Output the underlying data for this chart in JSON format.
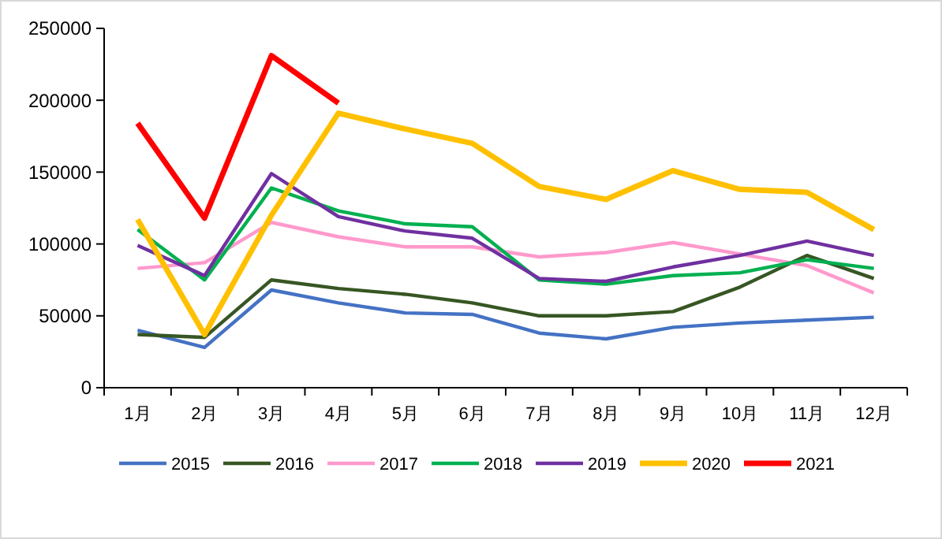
{
  "chart_data": {
    "type": "line",
    "categories": [
      "1月",
      "2月",
      "3月",
      "4月",
      "5月",
      "6月",
      "7月",
      "8月",
      "9月",
      "10月",
      "11月",
      "12月"
    ],
    "ylim": [
      0,
      250000
    ],
    "yticks": [
      0,
      50000,
      100000,
      150000,
      200000,
      250000
    ],
    "grid": false,
    "legend": "bottom",
    "marker": "none",
    "series": [
      {
        "name": "2015",
        "color": "#4472c4",
        "values": [
          40000,
          28000,
          68000,
          59000,
          52000,
          51000,
          38000,
          34000,
          42000,
          45000,
          47000,
          49000
        ]
      },
      {
        "name": "2016",
        "color": "#375623",
        "values": [
          37000,
          35000,
          75000,
          69000,
          65000,
          59000,
          50000,
          50000,
          53000,
          70000,
          92000,
          76000
        ]
      },
      {
        "name": "2017",
        "color": "#ff99cc",
        "values": [
          83000,
          87000,
          115000,
          105000,
          98000,
          98000,
          91000,
          94000,
          101000,
          93000,
          85000,
          66000
        ]
      },
      {
        "name": "2018",
        "color": "#00b050",
        "values": [
          110000,
          75000,
          139000,
          123000,
          114000,
          112000,
          75000,
          72000,
          78000,
          80000,
          89000,
          83000
        ]
      },
      {
        "name": "2019",
        "color": "#7030a0",
        "values": [
          99000,
          78000,
          149000,
          119000,
          109000,
          104000,
          76000,
          74000,
          84000,
          92000,
          102000,
          92000
        ]
      },
      {
        "name": "2020",
        "color": "#ffc000",
        "values": [
          117000,
          37000,
          120000,
          191000,
          180000,
          170000,
          140000,
          131000,
          151000,
          138000,
          136000,
          110000
        ]
      },
      {
        "name": "2021",
        "color": "#ff0000",
        "values": [
          184000,
          118000,
          231000,
          198000,
          null,
          null,
          null,
          null,
          null,
          null,
          null,
          null
        ]
      }
    ]
  }
}
